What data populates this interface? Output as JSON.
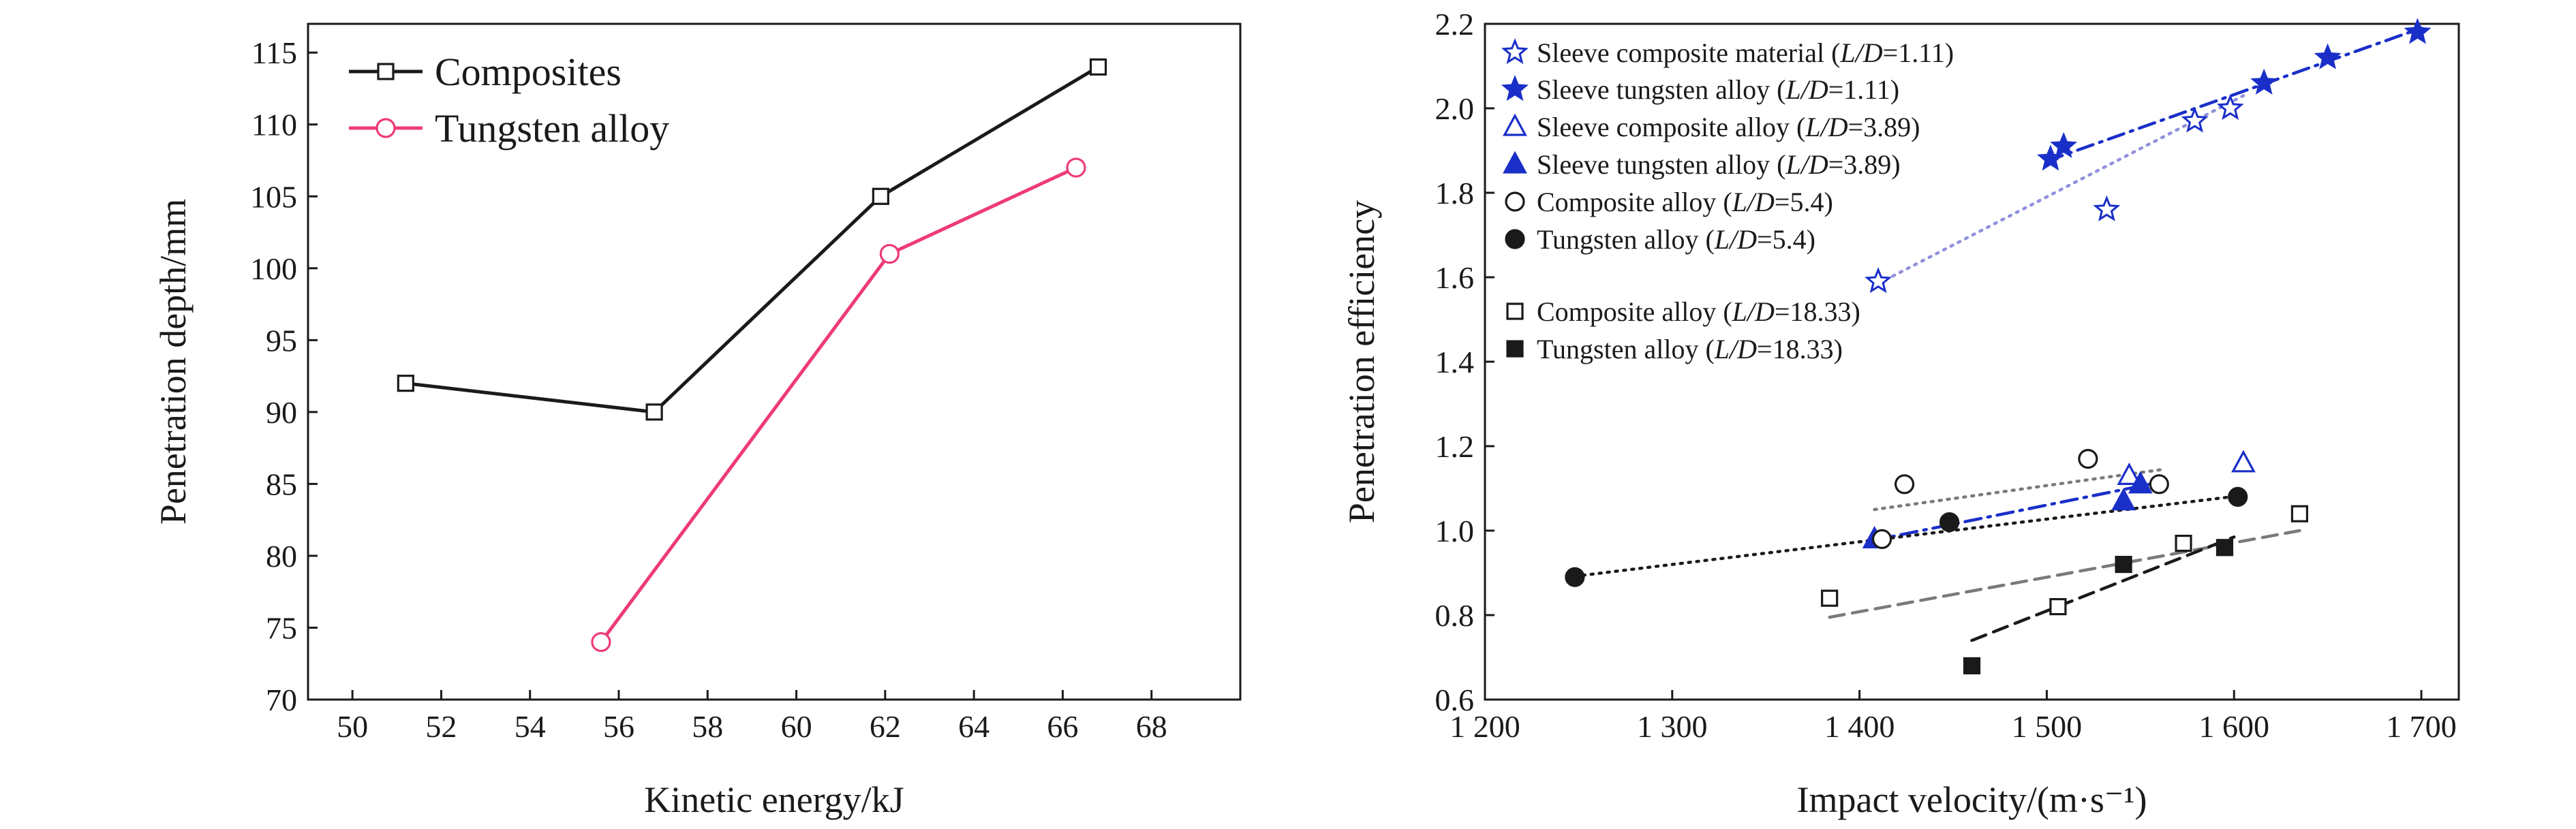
{
  "chart_data": [
    {
      "type": "line",
      "xlabel": "Kinetic energy/kJ",
      "ylabel": "Penetration depth/mm",
      "xlim": [
        49,
        70
      ],
      "ylim": [
        70,
        117
      ],
      "xticks": [
        50,
        52,
        54,
        56,
        58,
        60,
        62,
        64,
        66,
        68
      ],
      "yticks": [
        70,
        75,
        80,
        85,
        90,
        95,
        100,
        105,
        110,
        115
      ],
      "legend_position": "top-left",
      "grid": false,
      "series": [
        {
          "name": "Composites",
          "color": "#1a1a1a",
          "marker": "square-open",
          "x": [
            51.2,
            56.8,
            61.9,
            66.8
          ],
          "y": [
            92,
            90,
            105,
            114
          ]
        },
        {
          "name": "Tungsten alloy",
          "color": "#ee3b74",
          "marker": "circle-open",
          "x": [
            55.6,
            62.1,
            66.3
          ],
          "y": [
            74,
            101,
            107
          ]
        }
      ]
    },
    {
      "type": "scatter",
      "xlabel": "Impact velocity/(m·s⁻¹)",
      "ylabel": "Penetration efficiency",
      "xlim": [
        1200,
        1720
      ],
      "ylim": [
        0.6,
        2.2
      ],
      "xticks": [
        1200,
        1300,
        1400,
        1500,
        1600,
        1700
      ],
      "xtick_labels": [
        "1 200",
        "1 300",
        "1 400",
        "1 500",
        "1 600",
        "1 700"
      ],
      "yticks": [
        0.6,
        0.8,
        1.0,
        1.2,
        1.4,
        1.6,
        1.8,
        2.0,
        2.2
      ],
      "ytick_labels": [
        "0.6",
        "0.8",
        "1.0",
        "1.2",
        "1.4",
        "1.6",
        "1.8",
        "2.0",
        "2.2"
      ],
      "legend_position": "top-left",
      "grid": false,
      "series": [
        {
          "name": "Sleeve composite material",
          "ld": "1.11",
          "color": "#1a2fc8",
          "marker": "star-open",
          "x": [
            1410,
            1532,
            1579,
            1598
          ],
          "y": [
            1.59,
            1.76,
            1.97,
            2.0
          ],
          "fit": {
            "x": [
              1410,
              1605
            ],
            "y": [
              1.585,
              2.03
            ],
            "style": "dot",
            "color": "#9090dd"
          }
        },
        {
          "name": "Sleeve tungsten alloy",
          "ld": "1.11",
          "color": "#1a2fc8",
          "marker": "star",
          "x": [
            1502,
            1509,
            1616,
            1650,
            1698
          ],
          "y": [
            1.88,
            1.91,
            2.06,
            2.12,
            2.18
          ],
          "fit": {
            "x": [
              1500,
              1700
            ],
            "y": [
              1.875,
              2.19
            ],
            "style": "dashdot",
            "color": "#1a2fc8"
          }
        },
        {
          "name": "Sleeve composite alloy",
          "ld": "3.89",
          "color": "#1a2fc8",
          "marker": "triangle-open",
          "x": [
            1544,
            1605
          ],
          "y": [
            1.13,
            1.16
          ]
        },
        {
          "name": "Sleeve tungsten alloy",
          "ld": "3.89",
          "color": "#1a2fc8",
          "marker": "triangle",
          "x": [
            1408,
            1541,
            1550
          ],
          "y": [
            0.98,
            1.07,
            1.11
          ],
          "fit": {
            "x": [
              1405,
              1555
            ],
            "y": [
              0.975,
              1.11
            ],
            "style": "dashdot",
            "color": "#1a2fc8"
          }
        },
        {
          "name": "Composite alloy",
          "ld": "5.4",
          "color": "#1a1a1a",
          "marker": "circle-open",
          "x": [
            1412,
            1424,
            1522,
            1560
          ],
          "y": [
            0.98,
            1.11,
            1.17,
            1.11
          ],
          "fit": {
            "x": [
              1408,
              1562
            ],
            "y": [
              1.05,
              1.145
            ],
            "style": "dot",
            "color": "#7a7a7a"
          }
        },
        {
          "name": "Tungsten alloy",
          "ld": "5.4",
          "color": "#1a1a1a",
          "marker": "circle",
          "x": [
            1248,
            1448,
            1602
          ],
          "y": [
            0.89,
            1.02,
            1.08
          ],
          "fit": {
            "x": [
              1248,
              1602
            ],
            "y": [
              0.892,
              1.082
            ],
            "style": "dot",
            "color": "#1a1a1a"
          }
        },
        {
          "name": "Composite alloy",
          "ld": "18.33",
          "color": "#1a1a1a",
          "marker": "square-open",
          "x": [
            1384,
            1506,
            1573,
            1635
          ],
          "y": [
            0.84,
            0.82,
            0.97,
            1.04
          ],
          "fit": {
            "x": [
              1384,
              1635
            ],
            "y": [
              0.795,
              1.0
            ],
            "style": "dash",
            "color": "#7a7a7a"
          }
        },
        {
          "name": "Tungsten alloy",
          "ld": "18.33",
          "color": "#1a1a1a",
          "marker": "square",
          "x": [
            1460,
            1541,
            1595
          ],
          "y": [
            0.68,
            0.92,
            0.96
          ],
          "fit": {
            "x": [
              1460,
              1600
            ],
            "y": [
              0.74,
              0.985
            ],
            "style": "dash",
            "color": "#1a1a1a"
          }
        }
      ]
    }
  ]
}
